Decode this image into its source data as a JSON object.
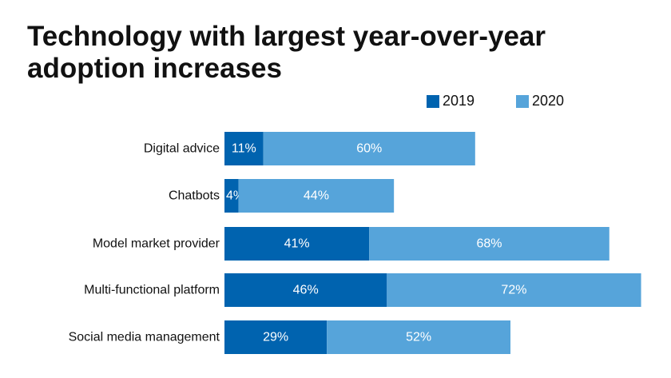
{
  "chart_data": {
    "type": "bar",
    "orientation": "horizontal",
    "stacked": true,
    "title_lines": [
      "Technology with largest year-over-year",
      "adoption increases"
    ],
    "categories": [
      "Digital advice",
      "Chatbots",
      "Model market provider",
      "Multi-functional platform",
      "Social media management"
    ],
    "series": [
      {
        "name": "2019",
        "color": "#0063AF",
        "values": [
          11,
          4,
          41,
          46,
          29
        ],
        "labels": [
          "11%",
          "4%",
          "41%",
          "46%",
          "29%"
        ]
      },
      {
        "name": "2020",
        "color": "#56A4DA",
        "values": [
          60,
          44,
          68,
          72,
          52
        ],
        "labels": [
          "60%",
          "44%",
          "68%",
          "72%",
          "52%"
        ]
      }
    ],
    "xlabel": "",
    "ylabel": "",
    "legend_position": "top-right",
    "grid": false
  }
}
